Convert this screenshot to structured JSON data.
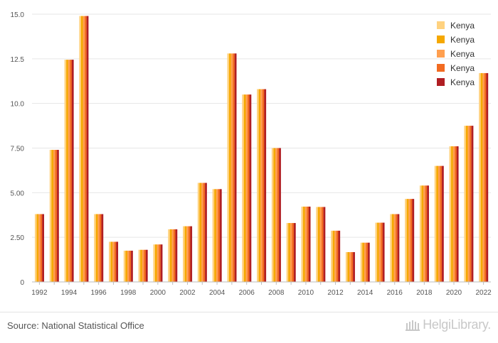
{
  "chart_data": {
    "type": "bar",
    "categories": [
      "1992",
      "1993",
      "1994",
      "1995",
      "1996",
      "1997",
      "1998",
      "1999",
      "2000",
      "2001",
      "2002",
      "2003",
      "2004",
      "2005",
      "2006",
      "2007",
      "2008",
      "2009",
      "2010",
      "2011",
      "2012",
      "2013",
      "2014",
      "2015",
      "2016",
      "2017",
      "2018",
      "2019",
      "2020",
      "2021",
      "2022"
    ],
    "x_tick_labels": [
      "1992",
      "1994",
      "1996",
      "1998",
      "2000",
      "2002",
      "2004",
      "2006",
      "2008",
      "2010",
      "2012",
      "2014",
      "2016",
      "2018",
      "2020",
      "2022"
    ],
    "y_tick_labels": [
      "0",
      "2.50",
      "5.00",
      "7.50",
      "10.0",
      "12.5",
      "15.0"
    ],
    "ylim": [
      0,
      15
    ],
    "grid": true,
    "legend_position": "top-right",
    "series": [
      {
        "name": "Kenya",
        "color": "#FFD27F",
        "values": [
          3.8,
          7.4,
          12.45,
          14.9,
          3.8,
          2.25,
          1.75,
          1.8,
          2.1,
          2.95,
          3.12,
          5.55,
          5.2,
          12.8,
          10.5,
          10.8,
          7.5,
          3.3,
          4.22,
          4.2,
          2.87,
          1.67,
          2.2,
          3.32,
          3.8,
          4.65,
          5.4,
          6.5,
          7.6,
          8.75,
          11.7
        ]
      },
      {
        "name": "Kenya",
        "color": "#F5A800",
        "values": [
          3.8,
          7.4,
          12.45,
          14.9,
          3.8,
          2.25,
          1.75,
          1.8,
          2.1,
          2.95,
          3.12,
          5.55,
          5.2,
          12.8,
          10.5,
          10.8,
          7.5,
          3.3,
          4.22,
          4.2,
          2.87,
          1.67,
          2.2,
          3.32,
          3.8,
          4.65,
          5.4,
          6.5,
          7.6,
          8.75,
          11.7
        ]
      },
      {
        "name": "Kenya",
        "color": "#FF9F4F",
        "values": [
          3.8,
          7.4,
          12.45,
          14.9,
          3.8,
          2.25,
          1.75,
          1.8,
          2.1,
          2.95,
          3.12,
          5.55,
          5.2,
          12.8,
          10.5,
          10.8,
          7.5,
          3.3,
          4.22,
          4.2,
          2.87,
          1.67,
          2.2,
          3.32,
          3.8,
          4.65,
          5.4,
          6.5,
          7.6,
          8.75,
          11.7
        ]
      },
      {
        "name": "Kenya",
        "color": "#F26B21",
        "values": [
          3.8,
          7.4,
          12.45,
          14.9,
          3.8,
          2.25,
          1.75,
          1.8,
          2.1,
          2.95,
          3.12,
          5.55,
          5.2,
          12.8,
          10.5,
          10.8,
          7.5,
          3.3,
          4.22,
          4.2,
          2.87,
          1.67,
          2.2,
          3.32,
          3.8,
          4.65,
          5.4,
          6.5,
          7.6,
          8.75,
          11.7
        ]
      },
      {
        "name": "Kenya",
        "color": "#B01E23",
        "values": [
          3.8,
          7.4,
          12.45,
          14.9,
          3.8,
          2.25,
          1.75,
          1.8,
          2.1,
          2.95,
          3.12,
          5.55,
          5.2,
          12.8,
          10.5,
          10.8,
          7.5,
          3.3,
          4.22,
          4.2,
          2.87,
          1.67,
          2.2,
          3.32,
          3.8,
          4.65,
          5.4,
          6.5,
          7.6,
          8.75,
          11.7
        ]
      }
    ]
  },
  "footer": {
    "source": "Source: National Statistical Office",
    "logo_text": "HelgiLibrary.",
    "logo_icon": "library-building-icon"
  }
}
